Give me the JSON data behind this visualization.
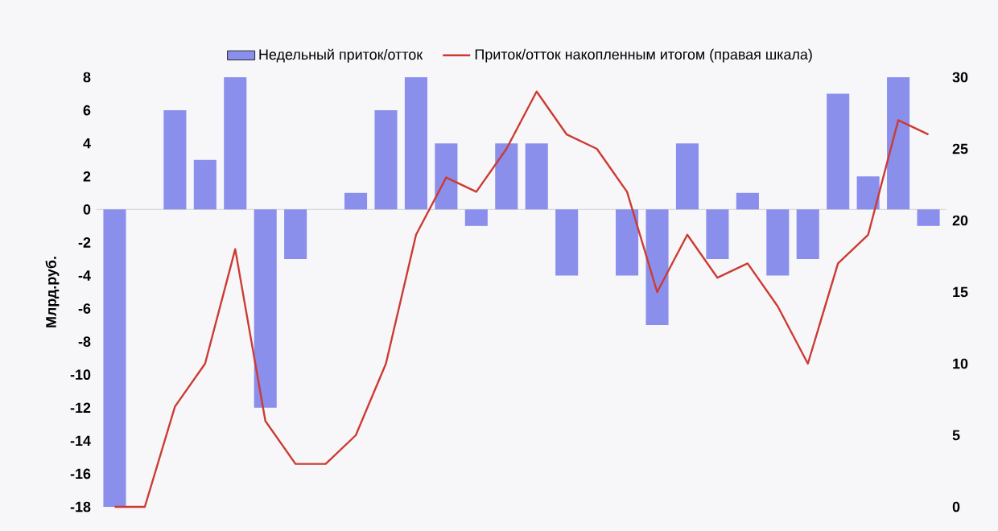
{
  "chart_data": {
    "type": "bar",
    "ylabel": "Млрд.руб.",
    "categories": [
      null,
      null,
      null,
      null,
      null,
      null,
      null,
      null,
      null,
      null,
      null,
      null,
      null,
      null,
      null,
      null,
      null,
      null,
      null,
      null,
      null,
      null,
      null,
      null,
      null,
      null,
      null,
      null
    ],
    "series": [
      {
        "name": "Недельный приток/отток",
        "color": "#8a8fec",
        "values": [
          -18,
          0,
          6,
          3,
          8,
          -12,
          -3,
          0,
          1,
          6,
          8,
          4,
          -1,
          4,
          4,
          -4,
          0,
          -4,
          -7,
          4,
          -3,
          1,
          -4,
          -3,
          7,
          2,
          8,
          -1
        ]
      },
      {
        "name": "Приток/отток накопленным итогом (правая шкала)",
        "type": "line",
        "axis": "y2",
        "color": "#cc3b33",
        "values": [
          0,
          0,
          7,
          10,
          18,
          6,
          3,
          3,
          5,
          10,
          19,
          23,
          22,
          25,
          29,
          26,
          25,
          22,
          15,
          19,
          16,
          17,
          14,
          10,
          17,
          19,
          27,
          26
        ]
      }
    ],
    "ylim": [
      -18,
      8
    ],
    "yticks": [
      -18,
      -16,
      -14,
      -12,
      -10,
      -8,
      -6,
      -4,
      -2,
      0,
      2,
      4,
      6,
      8
    ],
    "y2lim": [
      0,
      30
    ],
    "y2ticks": [
      0,
      5,
      10,
      15,
      20,
      25,
      30
    ],
    "ref_lines": [
      {
        "axis": "y",
        "value": 0,
        "color": "#d9d9dc"
      }
    ],
    "legend": "top"
  }
}
